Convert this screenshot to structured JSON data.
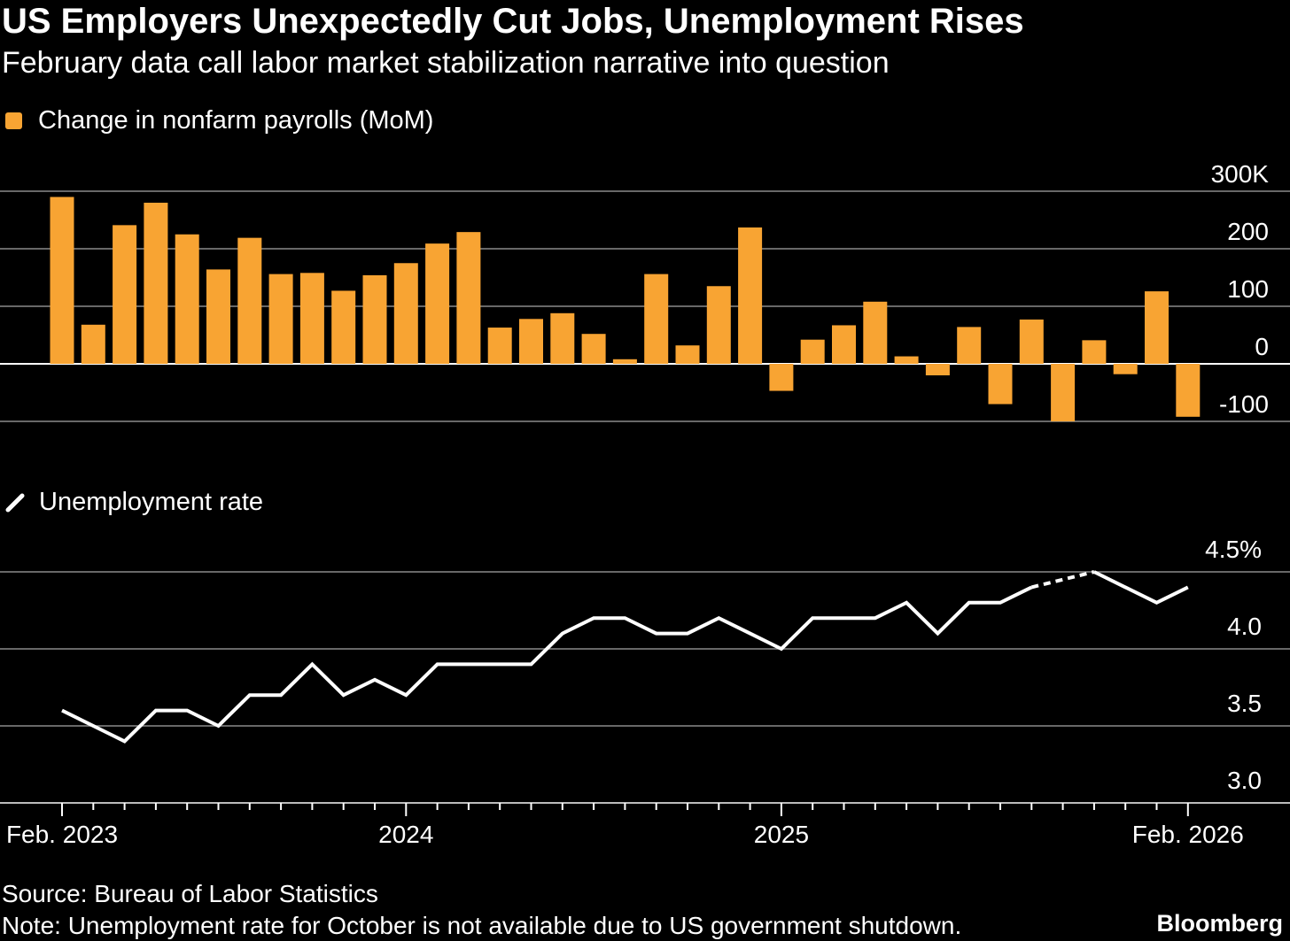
{
  "title": "US Employers Unexpectedly Cut Jobs, Unemployment Rises",
  "subtitle": "February data call labor market stabilization narrative into question",
  "source": "Source: Bureau of Labor Statistics",
  "note": "Note: Unemployment rate for October is not available due to US government shutdown.",
  "brand": "Bloomberg",
  "colors": {
    "bar": "#f8a433",
    "line": "#ffffff",
    "grid": "#8a8a8a",
    "background": "#000000"
  },
  "chart_data": [
    {
      "type": "bar",
      "legend": "Change in nonfarm payrolls (MoM)",
      "legend_placement": "top-left",
      "ytick_labels": [
        "300K",
        "200",
        "100",
        "0",
        "-100"
      ],
      "yticks": [
        300,
        200,
        100,
        0,
        -100
      ],
      "ylim": [
        -100,
        300
      ],
      "grid": true,
      "x": [
        "2023-02",
        "2023-03",
        "2023-04",
        "2023-05",
        "2023-06",
        "2023-07",
        "2023-08",
        "2023-09",
        "2023-10",
        "2023-11",
        "2023-12",
        "2024-01",
        "2024-02",
        "2024-03",
        "2024-04",
        "2024-05",
        "2024-06",
        "2024-07",
        "2024-08",
        "2024-09",
        "2024-10",
        "2024-11",
        "2024-12",
        "2025-01",
        "2025-02",
        "2025-03",
        "2025-04",
        "2025-05",
        "2025-06",
        "2025-07",
        "2025-08",
        "2025-09",
        "2025-10",
        "2025-11",
        "2025-12",
        "2026-01",
        "2026-02"
      ],
      "values": [
        290,
        68,
        241,
        280,
        225,
        164,
        219,
        156,
        158,
        127,
        154,
        175,
        209,
        229,
        63,
        78,
        88,
        52,
        8,
        156,
        32,
        135,
        237,
        -47,
        42,
        67,
        108,
        13,
        -20,
        64,
        -70,
        77,
        -100,
        41,
        -18,
        126,
        -92
      ]
    },
    {
      "type": "line",
      "legend": "Unemployment rate",
      "legend_placement": "top-left",
      "ytick_labels": [
        "4.5%",
        "4.0",
        "3.5",
        "3.0"
      ],
      "yticks": [
        4.5,
        4.0,
        3.5,
        3.0
      ],
      "ylim": [
        3.0,
        4.5
      ],
      "grid": true,
      "x": [
        "2023-02",
        "2023-03",
        "2023-04",
        "2023-05",
        "2023-06",
        "2023-07",
        "2023-08",
        "2023-09",
        "2023-10",
        "2023-11",
        "2023-12",
        "2024-01",
        "2024-02",
        "2024-03",
        "2024-04",
        "2024-05",
        "2024-06",
        "2024-07",
        "2024-08",
        "2024-09",
        "2024-10",
        "2024-11",
        "2024-12",
        "2025-01",
        "2025-02",
        "2025-03",
        "2025-04",
        "2025-05",
        "2025-06",
        "2025-07",
        "2025-08",
        "2025-09",
        "2025-10",
        "2025-11",
        "2025-12",
        "2026-01",
        "2026-02"
      ],
      "values": [
        3.6,
        3.5,
        3.4,
        3.6,
        3.6,
        3.5,
        3.7,
        3.7,
        3.9,
        3.7,
        3.8,
        3.7,
        3.9,
        3.9,
        3.9,
        3.9,
        4.1,
        4.2,
        4.2,
        4.1,
        4.1,
        4.2,
        4.1,
        4.0,
        4.2,
        4.2,
        4.2,
        4.3,
        4.1,
        4.3,
        4.3,
        4.4,
        null,
        4.5,
        4.4,
        4.3,
        4.4
      ],
      "missing_note": "October 2025 not available (dashed segment)"
    }
  ],
  "x_axis": {
    "labels": [
      {
        "text": "Feb. 2023",
        "x": "2023-02"
      },
      {
        "text": "2024",
        "x": "2024-01"
      },
      {
        "text": "2025",
        "x": "2025-01"
      },
      {
        "text": "Feb. 2026",
        "x": "2026-02"
      }
    ]
  }
}
